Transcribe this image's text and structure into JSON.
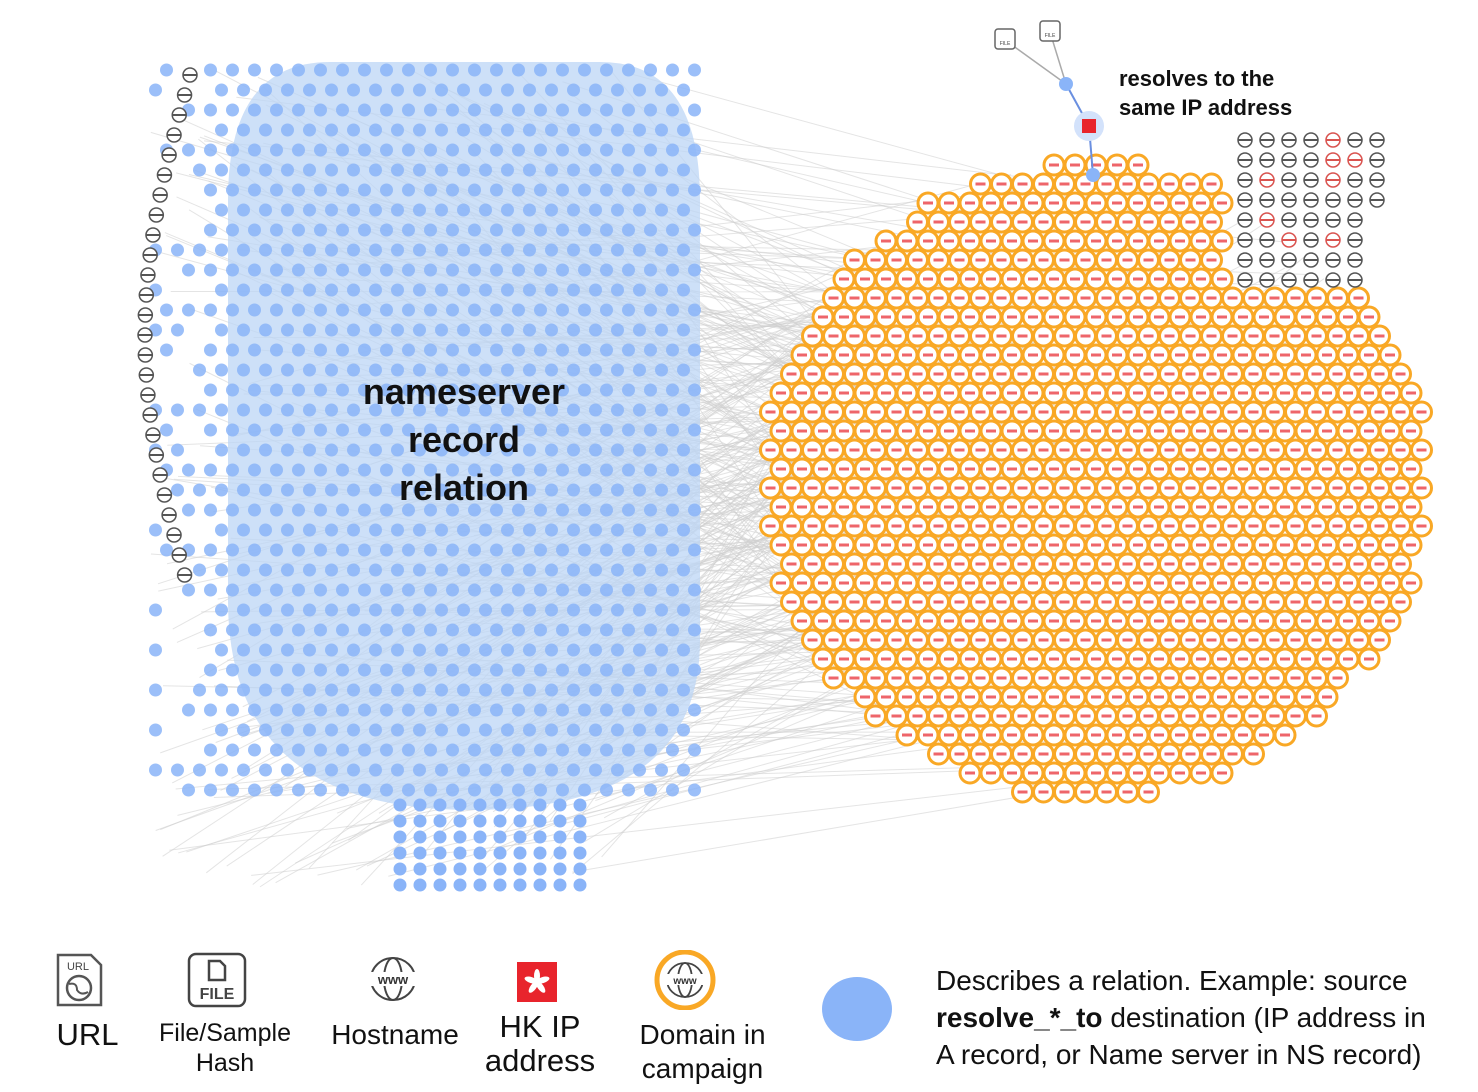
{
  "annotations": {
    "nameserver": [
      "nameserver",
      "record",
      "relation"
    ],
    "same_ip": [
      "resolves to the",
      "same IP address"
    ]
  },
  "legend": {
    "url": {
      "label": "URL",
      "icon": "url-file-icon",
      "icon_text": "URL"
    },
    "file": {
      "label_1": "File/Sample",
      "label_2": "Hash",
      "icon": "file-icon",
      "icon_text": "FILE"
    },
    "hostname": {
      "label": "Hostname",
      "icon": "www-globe-icon",
      "icon_text": "www"
    },
    "hk_ip": {
      "label_1": "HK IP",
      "label_2": "address",
      "icon": "hong-kong-flag-icon"
    },
    "domain": {
      "label_1": "Domain in",
      "label_2": "campaign",
      "icon": "www-globe-orange-ring-icon"
    },
    "relation": {
      "icon": "blue-circle-icon",
      "line1": "Describes a relation. Example: source",
      "line2_bold": "resolve_*_to",
      "line2_rest": " destination (IP address in",
      "line3": "A record, or Name server in NS record)"
    }
  },
  "colors": {
    "relation_blue": "#8ab4f8",
    "domain_orange": "#f9a825",
    "hk_red": "#e8242c",
    "edge_gray": "#cfcfcf",
    "hostname_gray": "#555555"
  }
}
